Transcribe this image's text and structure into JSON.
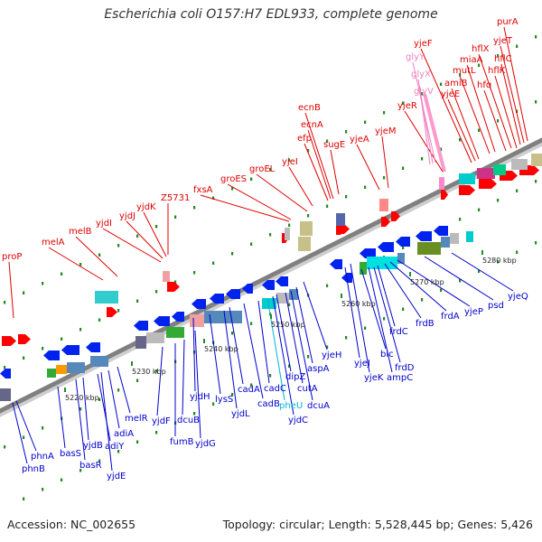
{
  "title": "Escherichia coli O157:H7 EDL933, complete genome",
  "footer": {
    "accession": "Accession: NC_002655",
    "stats": "Topology: circular; Length: 5,528,445 bp; Genes: 5,426"
  },
  "colors": {
    "upper_label": "#e00000",
    "lower_label": "#0000cc",
    "rna_label": "#f080c0",
    "highlight_label": "#00b4d8",
    "axis": "#808080",
    "tick": "#228b22"
  },
  "kbp_ticks": [
    "5220 kbp",
    "5230 kbp",
    "5240 kbp",
    "5250 kbp",
    "5260 kbp",
    "5270 kbp",
    "5280 kbp"
  ],
  "upper_labels": [
    {
      "text": "proP",
      "kind": "gene"
    },
    {
      "text": "melA",
      "kind": "gene"
    },
    {
      "text": "melB",
      "kind": "gene"
    },
    {
      "text": "yjdI",
      "kind": "gene"
    },
    {
      "text": "yjdJ",
      "kind": "gene"
    },
    {
      "text": "yjdK",
      "kind": "gene"
    },
    {
      "text": "Z5731",
      "kind": "gene"
    },
    {
      "text": "fxsA",
      "kind": "gene"
    },
    {
      "text": "groES",
      "kind": "gene"
    },
    {
      "text": "groEL",
      "kind": "gene"
    },
    {
      "text": "yjeI",
      "kind": "gene"
    },
    {
      "text": "efp",
      "kind": "gene"
    },
    {
      "text": "ecnA",
      "kind": "gene"
    },
    {
      "text": "ecnB",
      "kind": "gene"
    },
    {
      "text": "sugE",
      "kind": "gene"
    },
    {
      "text": "yjeA",
      "kind": "gene"
    },
    {
      "text": "yjeM",
      "kind": "gene"
    },
    {
      "text": "yjeR",
      "kind": "gene"
    },
    {
      "text": "glyV",
      "kind": "rna"
    },
    {
      "text": "glyX",
      "kind": "rna"
    },
    {
      "text": "glyY",
      "kind": "rna"
    },
    {
      "text": "yjeF",
      "kind": "gene"
    },
    {
      "text": "yjeE",
      "kind": "gene"
    },
    {
      "text": "amiB",
      "kind": "gene"
    },
    {
      "text": "mutL",
      "kind": "gene"
    },
    {
      "text": "miaA",
      "kind": "gene"
    },
    {
      "text": "hfq",
      "kind": "gene"
    },
    {
      "text": "hflX",
      "kind": "gene"
    },
    {
      "text": "hflK",
      "kind": "gene"
    },
    {
      "text": "hflC",
      "kind": "gene"
    },
    {
      "text": "yjeT",
      "kind": "gene"
    },
    {
      "text": "purA",
      "kind": "gene"
    }
  ],
  "lower_labels": [
    {
      "text": "phnB",
      "kind": "gene"
    },
    {
      "text": "phnA",
      "kind": "gene"
    },
    {
      "text": "basS",
      "kind": "gene"
    },
    {
      "text": "basR",
      "kind": "gene"
    },
    {
      "text": "yjdB",
      "kind": "gene"
    },
    {
      "text": "adiY",
      "kind": "gene"
    },
    {
      "text": "yjdE",
      "kind": "gene"
    },
    {
      "text": "adiA",
      "kind": "gene"
    },
    {
      "text": "melR",
      "kind": "gene"
    },
    {
      "text": "yjdF",
      "kind": "gene"
    },
    {
      "text": "fumB",
      "kind": "gene"
    },
    {
      "text": "dcuB",
      "kind": "gene"
    },
    {
      "text": "yjdG",
      "kind": "gene"
    },
    {
      "text": "yjdH",
      "kind": "gene"
    },
    {
      "text": "lysS",
      "kind": "gene"
    },
    {
      "text": "yjdL",
      "kind": "gene"
    },
    {
      "text": "cadA",
      "kind": "gene"
    },
    {
      "text": "cadB",
      "kind": "gene"
    },
    {
      "text": "cadC",
      "kind": "gene"
    },
    {
      "text": "pheU",
      "kind": "highlight"
    },
    {
      "text": "yjdC",
      "kind": "gene"
    },
    {
      "text": "dipZ",
      "kind": "gene"
    },
    {
      "text": "cutA",
      "kind": "gene"
    },
    {
      "text": "dcuA",
      "kind": "gene"
    },
    {
      "text": "aspA",
      "kind": "gene"
    },
    {
      "text": "yjeH",
      "kind": "gene"
    },
    {
      "text": "yjeJ",
      "kind": "gene"
    },
    {
      "text": "yjeK",
      "kind": "gene"
    },
    {
      "text": "blc",
      "kind": "gene"
    },
    {
      "text": "ampC",
      "kind": "gene"
    },
    {
      "text": "frdD",
      "kind": "gene"
    },
    {
      "text": "frdC",
      "kind": "gene"
    },
    {
      "text": "frdB",
      "kind": "gene"
    },
    {
      "text": "frdA",
      "kind": "gene"
    },
    {
      "text": "yjeP",
      "kind": "gene"
    },
    {
      "text": "psd",
      "kind": "gene"
    },
    {
      "text": "yjeQ",
      "kind": "gene"
    }
  ]
}
